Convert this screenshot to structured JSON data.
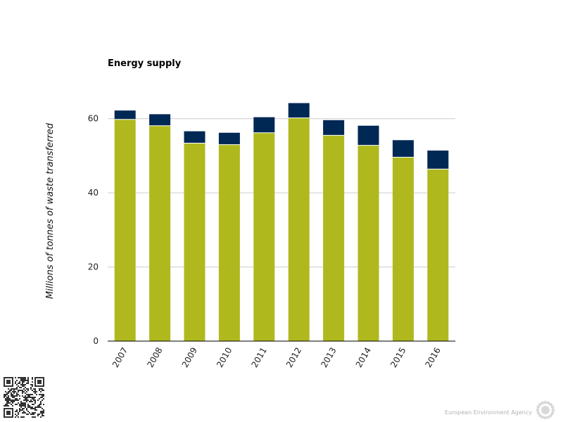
{
  "chart_data": {
    "type": "bar",
    "stacked": true,
    "title": "Energy supply",
    "ylabel": "Millions of tonnes of waste transferred",
    "xlabel": "",
    "categories": [
      "2007",
      "2008",
      "2009",
      "2010",
      "2011",
      "2012",
      "2013",
      "2014",
      "2015",
      "2016"
    ],
    "series": [
      {
        "color": "#afb91e",
        "values": [
          59.8,
          58.1,
          53.4,
          53.0,
          56.2,
          60.2,
          55.5,
          52.8,
          49.6,
          46.4
        ]
      },
      {
        "color": "#002855",
        "values": [
          2.4,
          3.1,
          3.2,
          3.2,
          4.2,
          4.0,
          4.1,
          5.3,
          4.6,
          5.0
        ]
      }
    ],
    "ylim": [
      0,
      70
    ],
    "yticks": [
      0,
      20,
      40,
      60
    ],
    "grid": true,
    "legend": "none"
  },
  "footer": {
    "brand": "European Environment Agency"
  },
  "icons": {
    "logo": "eea-sun-logo-icon",
    "qr": "qr-code-icon"
  }
}
